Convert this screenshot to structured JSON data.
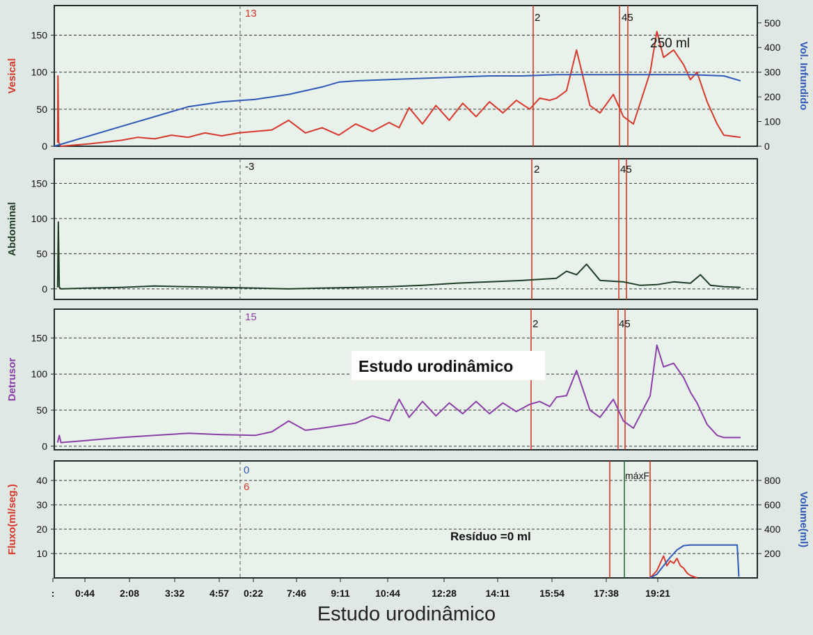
{
  "caption": "Estudo urodinâmico",
  "chart_data": {
    "type": "line",
    "xlabel": "",
    "x_ticks": [
      ":",
      "0:44",
      "2:08",
      "3:32",
      "4:57",
      "0:22",
      "7:46",
      "9:11",
      "10:44",
      "12:28",
      "14:11",
      "15:54",
      "17:38",
      "19:21"
    ],
    "colors": {
      "vesical": "#d8372b",
      "infused": "#2f58b8",
      "abdominal": "#1e3d24",
      "detrusor": "#8a3fa8",
      "flow": "#d8372b",
      "volume": "#2f58b8",
      "marker": "#d8372b",
      "maxf_marker": "#2e6b3a"
    },
    "panels": [
      {
        "id": "vesical",
        "ylabel": "Vesical",
        "ylim": [
          0,
          190
        ],
        "yticks": [
          0,
          50,
          100,
          150
        ],
        "y2label": "Vol. Infundido",
        "y2lim": [
          0,
          570
        ],
        "y2ticks": [
          0,
          100,
          200,
          300,
          400,
          500
        ],
        "cursor_value": "13",
        "marker_labels": [
          "2",
          "45"
        ],
        "annotation": "250 ml",
        "series": [
          {
            "name": "Vesical",
            "axis": "left",
            "x": [
              0.1,
              0.11,
              0.13,
              0.2,
              1.0,
              2.0,
              2.5,
              3.0,
              3.5,
              4.0,
              4.5,
              5.0,
              5.5,
              6.0,
              6.5,
              7.0,
              7.5,
              8.0,
              8.5,
              9.0,
              9.5,
              10.0,
              10.3,
              10.6,
              11.0,
              11.4,
              11.8,
              12.2,
              12.6,
              13.0,
              13.4,
              13.8,
              14.2,
              14.5,
              14.8,
              15.0,
              15.3,
              15.6,
              16.0,
              16.3,
              16.7,
              17.0,
              17.3,
              17.8,
              18.0,
              18.2,
              18.5,
              18.8,
              19.0,
              19.2,
              19.5,
              19.8,
              20.0,
              20.5
            ],
            "y": [
              5,
              95,
              5,
              0,
              3,
              8,
              12,
              10,
              15,
              12,
              18,
              14,
              18,
              20,
              22,
              35,
              18,
              25,
              15,
              30,
              20,
              32,
              25,
              52,
              30,
              55,
              35,
              58,
              40,
              60,
              45,
              62,
              50,
              65,
              62,
              65,
              75,
              130,
              55,
              45,
              70,
              40,
              30,
              100,
              155,
              120,
              130,
              110,
              90,
              100,
              60,
              30,
              15,
              12
            ]
          },
          {
            "name": "Vol. Infundido",
            "axis": "right",
            "x": [
              0,
              1.0,
              2.0,
              3.0,
              4.0,
              5.0,
              6.0,
              7.0,
              8.0,
              8.5,
              9.0,
              10.0,
              11.0,
              12.0,
              13.0,
              14.0,
              15.0,
              15.5,
              16.0,
              17.0,
              18.0,
              19.0,
              20.0,
              20.5
            ],
            "y": [
              0,
              40,
              80,
              120,
              160,
              180,
              190,
              210,
              240,
              260,
              265,
              270,
              275,
              280,
              285,
              285,
              290,
              290,
              290,
              290,
              290,
              290,
              285,
              265
            ]
          }
        ]
      },
      {
        "id": "abdominal",
        "ylabel": "Abdominal",
        "ylim": [
          -15,
          185
        ],
        "yticks": [
          0,
          50,
          100,
          150
        ],
        "cursor_value": "-3",
        "marker_labels": [
          "2",
          "45"
        ],
        "series": [
          {
            "name": "Abdominal",
            "axis": "left",
            "x": [
              0.1,
              0.12,
              0.15,
              0.2,
              1.0,
              2.0,
              3.0,
              4.0,
              5.0,
              6.0,
              7.0,
              8.0,
              9.0,
              10.0,
              11.0,
              12.0,
              13.0,
              14.0,
              15.0,
              15.3,
              15.6,
              15.9,
              16.3,
              17.0,
              17.5,
              18.0,
              18.5,
              19.0,
              19.3,
              19.6,
              20.0,
              20.5
            ],
            "y": [
              2,
              95,
              2,
              0,
              1,
              2,
              4,
              3,
              2,
              1,
              0,
              1,
              2,
              3,
              5,
              8,
              10,
              12,
              15,
              25,
              20,
              35,
              12,
              10,
              5,
              6,
              10,
              8,
              20,
              5,
              3,
              2
            ]
          }
        ]
      },
      {
        "id": "detrusor",
        "ylabel": "Detrusor",
        "ylim": [
          -5,
          190
        ],
        "yticks": [
          0,
          50,
          100,
          150
        ],
        "cursor_value": "15",
        "marker_labels": [
          "2",
          "45"
        ],
        "annotation": "Estudo urodinâmico",
        "series": [
          {
            "name": "Detrusor",
            "axis": "left",
            "x": [
              0.1,
              0.15,
              0.2,
              1.0,
              2.0,
              3.0,
              4.0,
              5.0,
              6.0,
              6.5,
              7.0,
              7.5,
              8.0,
              9.0,
              9.5,
              10.0,
              10.3,
              10.6,
              11.0,
              11.4,
              11.8,
              12.2,
              12.6,
              13.0,
              13.4,
              13.8,
              14.2,
              14.5,
              14.8,
              15.0,
              15.3,
              15.6,
              16.0,
              16.3,
              16.7,
              17.0,
              17.3,
              17.8,
              18.0,
              18.2,
              18.5,
              18.8,
              19.0,
              19.2,
              19.5,
              19.8,
              20.0,
              20.5
            ],
            "y": [
              5,
              15,
              5,
              8,
              12,
              15,
              18,
              16,
              15,
              20,
              35,
              22,
              25,
              32,
              42,
              35,
              65,
              40,
              62,
              42,
              60,
              45,
              62,
              45,
              60,
              48,
              58,
              62,
              55,
              68,
              70,
              105,
              50,
              40,
              65,
              35,
              25,
              70,
              140,
              110,
              115,
              95,
              75,
              60,
              30,
              15,
              12,
              12
            ]
          }
        ]
      },
      {
        "id": "flow",
        "ylabel": "Fluxo(ml/seg.)",
        "ylim": [
          0,
          48
        ],
        "yticks": [
          10,
          20,
          30,
          40
        ],
        "y2label": "Volume(ml)",
        "y2lim": [
          0,
          960
        ],
        "y2ticks": [
          200,
          400,
          600,
          800
        ],
        "cursor_values": [
          "0",
          "6"
        ],
        "marker_labels": [
          "máxF"
        ],
        "annotation": "Resíduo =0 ml",
        "series": [
          {
            "name": "Fluxo",
            "axis": "left",
            "x": [
              17.8,
              18.0,
              18.2,
              18.3,
              18.4,
              18.5,
              18.6,
              18.7,
              18.8,
              18.9,
              19.0,
              19.2
            ],
            "y": [
              0,
              3,
              9,
              5,
              7,
              6,
              8,
              5,
              4,
              2,
              1,
              0
            ]
          },
          {
            "name": "Volume",
            "axis": "right",
            "x": [
              17.8,
              18.0,
              18.2,
              18.4,
              18.6,
              18.8,
              19.0,
              19.5,
              20.0,
              20.4,
              20.45
            ],
            "y": [
              0,
              30,
              100,
              170,
              230,
              265,
              270,
              270,
              270,
              270,
              10
            ]
          }
        ]
      }
    ]
  }
}
